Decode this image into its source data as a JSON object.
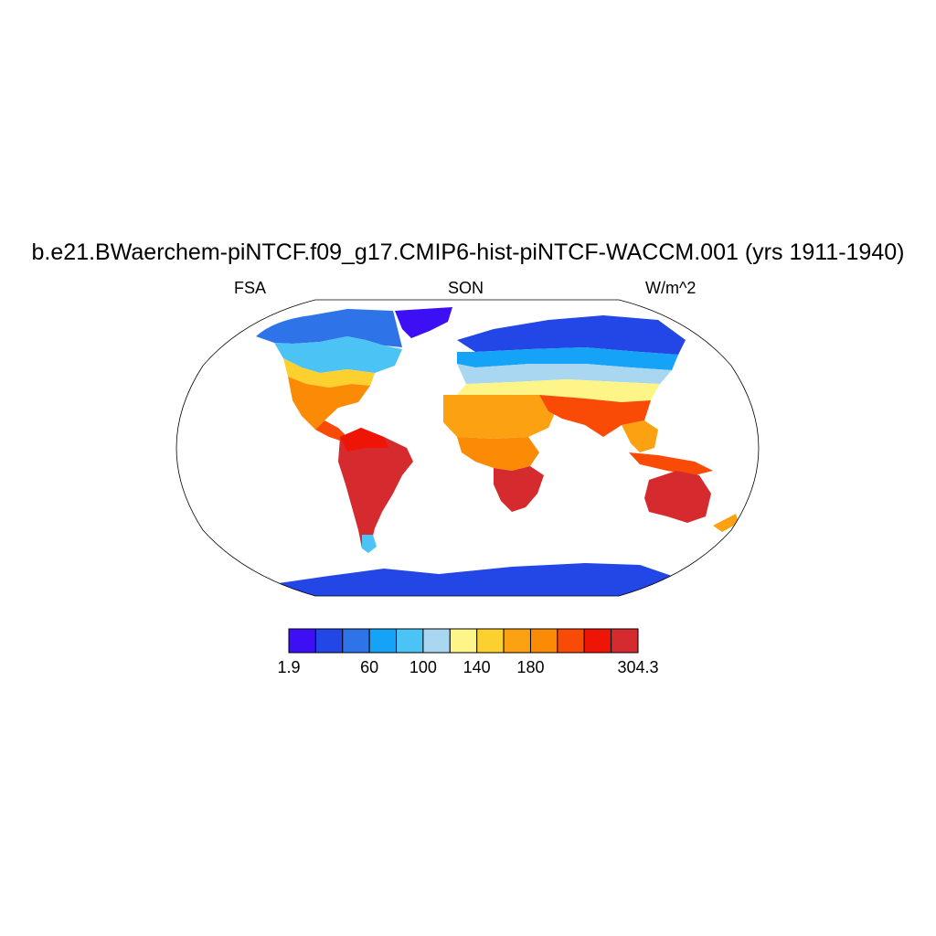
{
  "title": "b.e21.BWaerchem-piNTCF.f09_g17.CMIP6-hist-piNTCF-WACCM.001 (yrs 1911-1940)",
  "left_string": "FSA",
  "center_string": "SON",
  "right_string": "W/m^2",
  "colorbar": {
    "colors": [
      "#3d0ff5",
      "#2346e6",
      "#2e74e8",
      "#14a3f7",
      "#4cc3f5",
      "#a9d6f0",
      "#fdf588",
      "#fcd02e",
      "#fca212",
      "#fb8b05",
      "#f94a06",
      "#ee1506",
      "#d62b2e"
    ],
    "labels": [
      {
        "text": "1.9",
        "boundary": 0
      },
      {
        "text": "60",
        "boundary": 3
      },
      {
        "text": "100",
        "boundary": 5
      },
      {
        "text": "140",
        "boundary": 7
      },
      {
        "text": "180",
        "boundary": 9
      },
      {
        "text": "304.3",
        "boundary": 13
      }
    ]
  },
  "map": {
    "projection": "robinson",
    "field": "FSA",
    "season": "SON"
  }
}
